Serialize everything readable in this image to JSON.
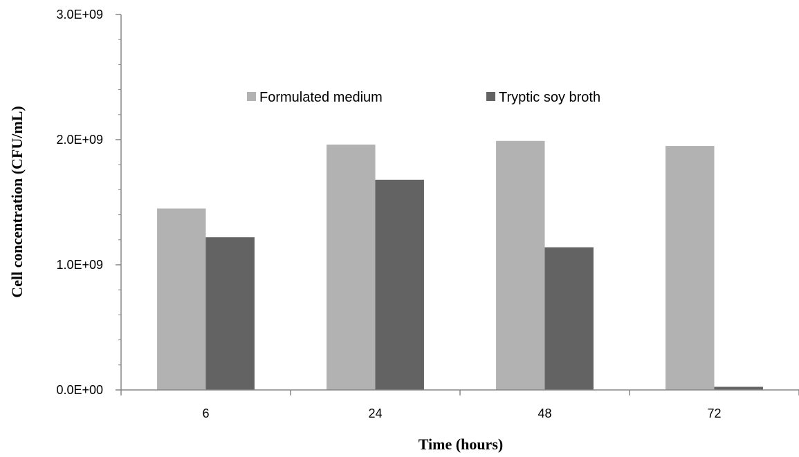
{
  "chart_data": {
    "type": "bar",
    "title": "",
    "xlabel": "Time (hours)",
    "ylabel": "Cell concentration (CFU/mL)",
    "categories": [
      "6",
      "24",
      "48",
      "72"
    ],
    "series": [
      {
        "name": "Formulated medium",
        "color": "#b2b2b2",
        "values": [
          1450000000,
          1960000000,
          1990000000,
          1950000000
        ]
      },
      {
        "name": "Tryptic soy broth",
        "color": "#636363",
        "values": [
          1220000000,
          1680000000,
          1140000000,
          25000000
        ]
      }
    ],
    "ylim": [
      0,
      3000000000
    ],
    "yticks": [
      {
        "value": 0,
        "label": "0.0E+00"
      },
      {
        "value": 1000000000,
        "label": "1.0E+09"
      },
      {
        "value": 2000000000,
        "label": "2.0E+09"
      },
      {
        "value": 3000000000,
        "label": "3.0E+09"
      }
    ],
    "grid": false,
    "legend_position": "top"
  }
}
